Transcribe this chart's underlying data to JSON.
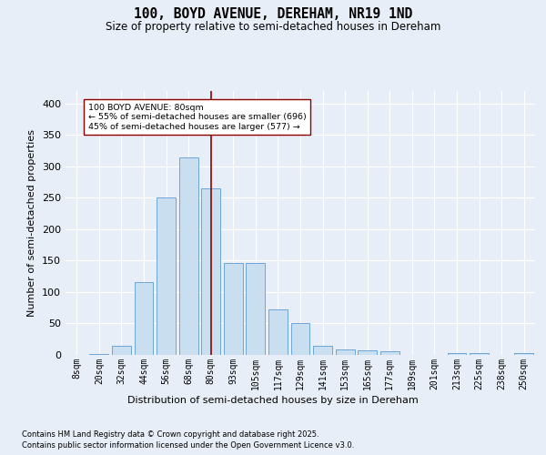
{
  "title_line1": "100, BOYD AVENUE, DEREHAM, NR19 1ND",
  "title_line2": "Size of property relative to semi-detached houses in Dereham",
  "xlabel": "Distribution of semi-detached houses by size in Dereham",
  "ylabel": "Number of semi-detached properties",
  "categories": [
    "8sqm",
    "20sqm",
    "32sqm",
    "44sqm",
    "56sqm",
    "68sqm",
    "80sqm",
    "93sqm",
    "105sqm",
    "117sqm",
    "129sqm",
    "141sqm",
    "153sqm",
    "165sqm",
    "177sqm",
    "189sqm",
    "201sqm",
    "213sqm",
    "225sqm",
    "238sqm",
    "250sqm"
  ],
  "values": [
    0,
    1,
    14,
    116,
    250,
    315,
    265,
    147,
    147,
    73,
    50,
    15,
    8,
    7,
    6,
    0,
    0,
    3,
    3,
    0,
    3
  ],
  "highlight_index": 6,
  "highlight_label": "100 BOYD AVENUE: 80sqm",
  "pct_smaller": 55,
  "pct_larger": 45,
  "count_smaller": 696,
  "count_larger": 577,
  "bar_color": "#c9dff0",
  "bar_edge_color": "#5b9bd5",
  "highlight_line_color": "#8b0000",
  "annotation_box_color": "#ffffff",
  "annotation_box_edge": "#8b0000",
  "background_color": "#e8eef7",
  "plot_bg_color": "#e8eef7",
  "ylim": [
    0,
    420
  ],
  "yticks": [
    0,
    50,
    100,
    150,
    200,
    250,
    300,
    350,
    400
  ],
  "footer_line1": "Contains HM Land Registry data © Crown copyright and database right 2025.",
  "footer_line2": "Contains public sector information licensed under the Open Government Licence v3.0."
}
